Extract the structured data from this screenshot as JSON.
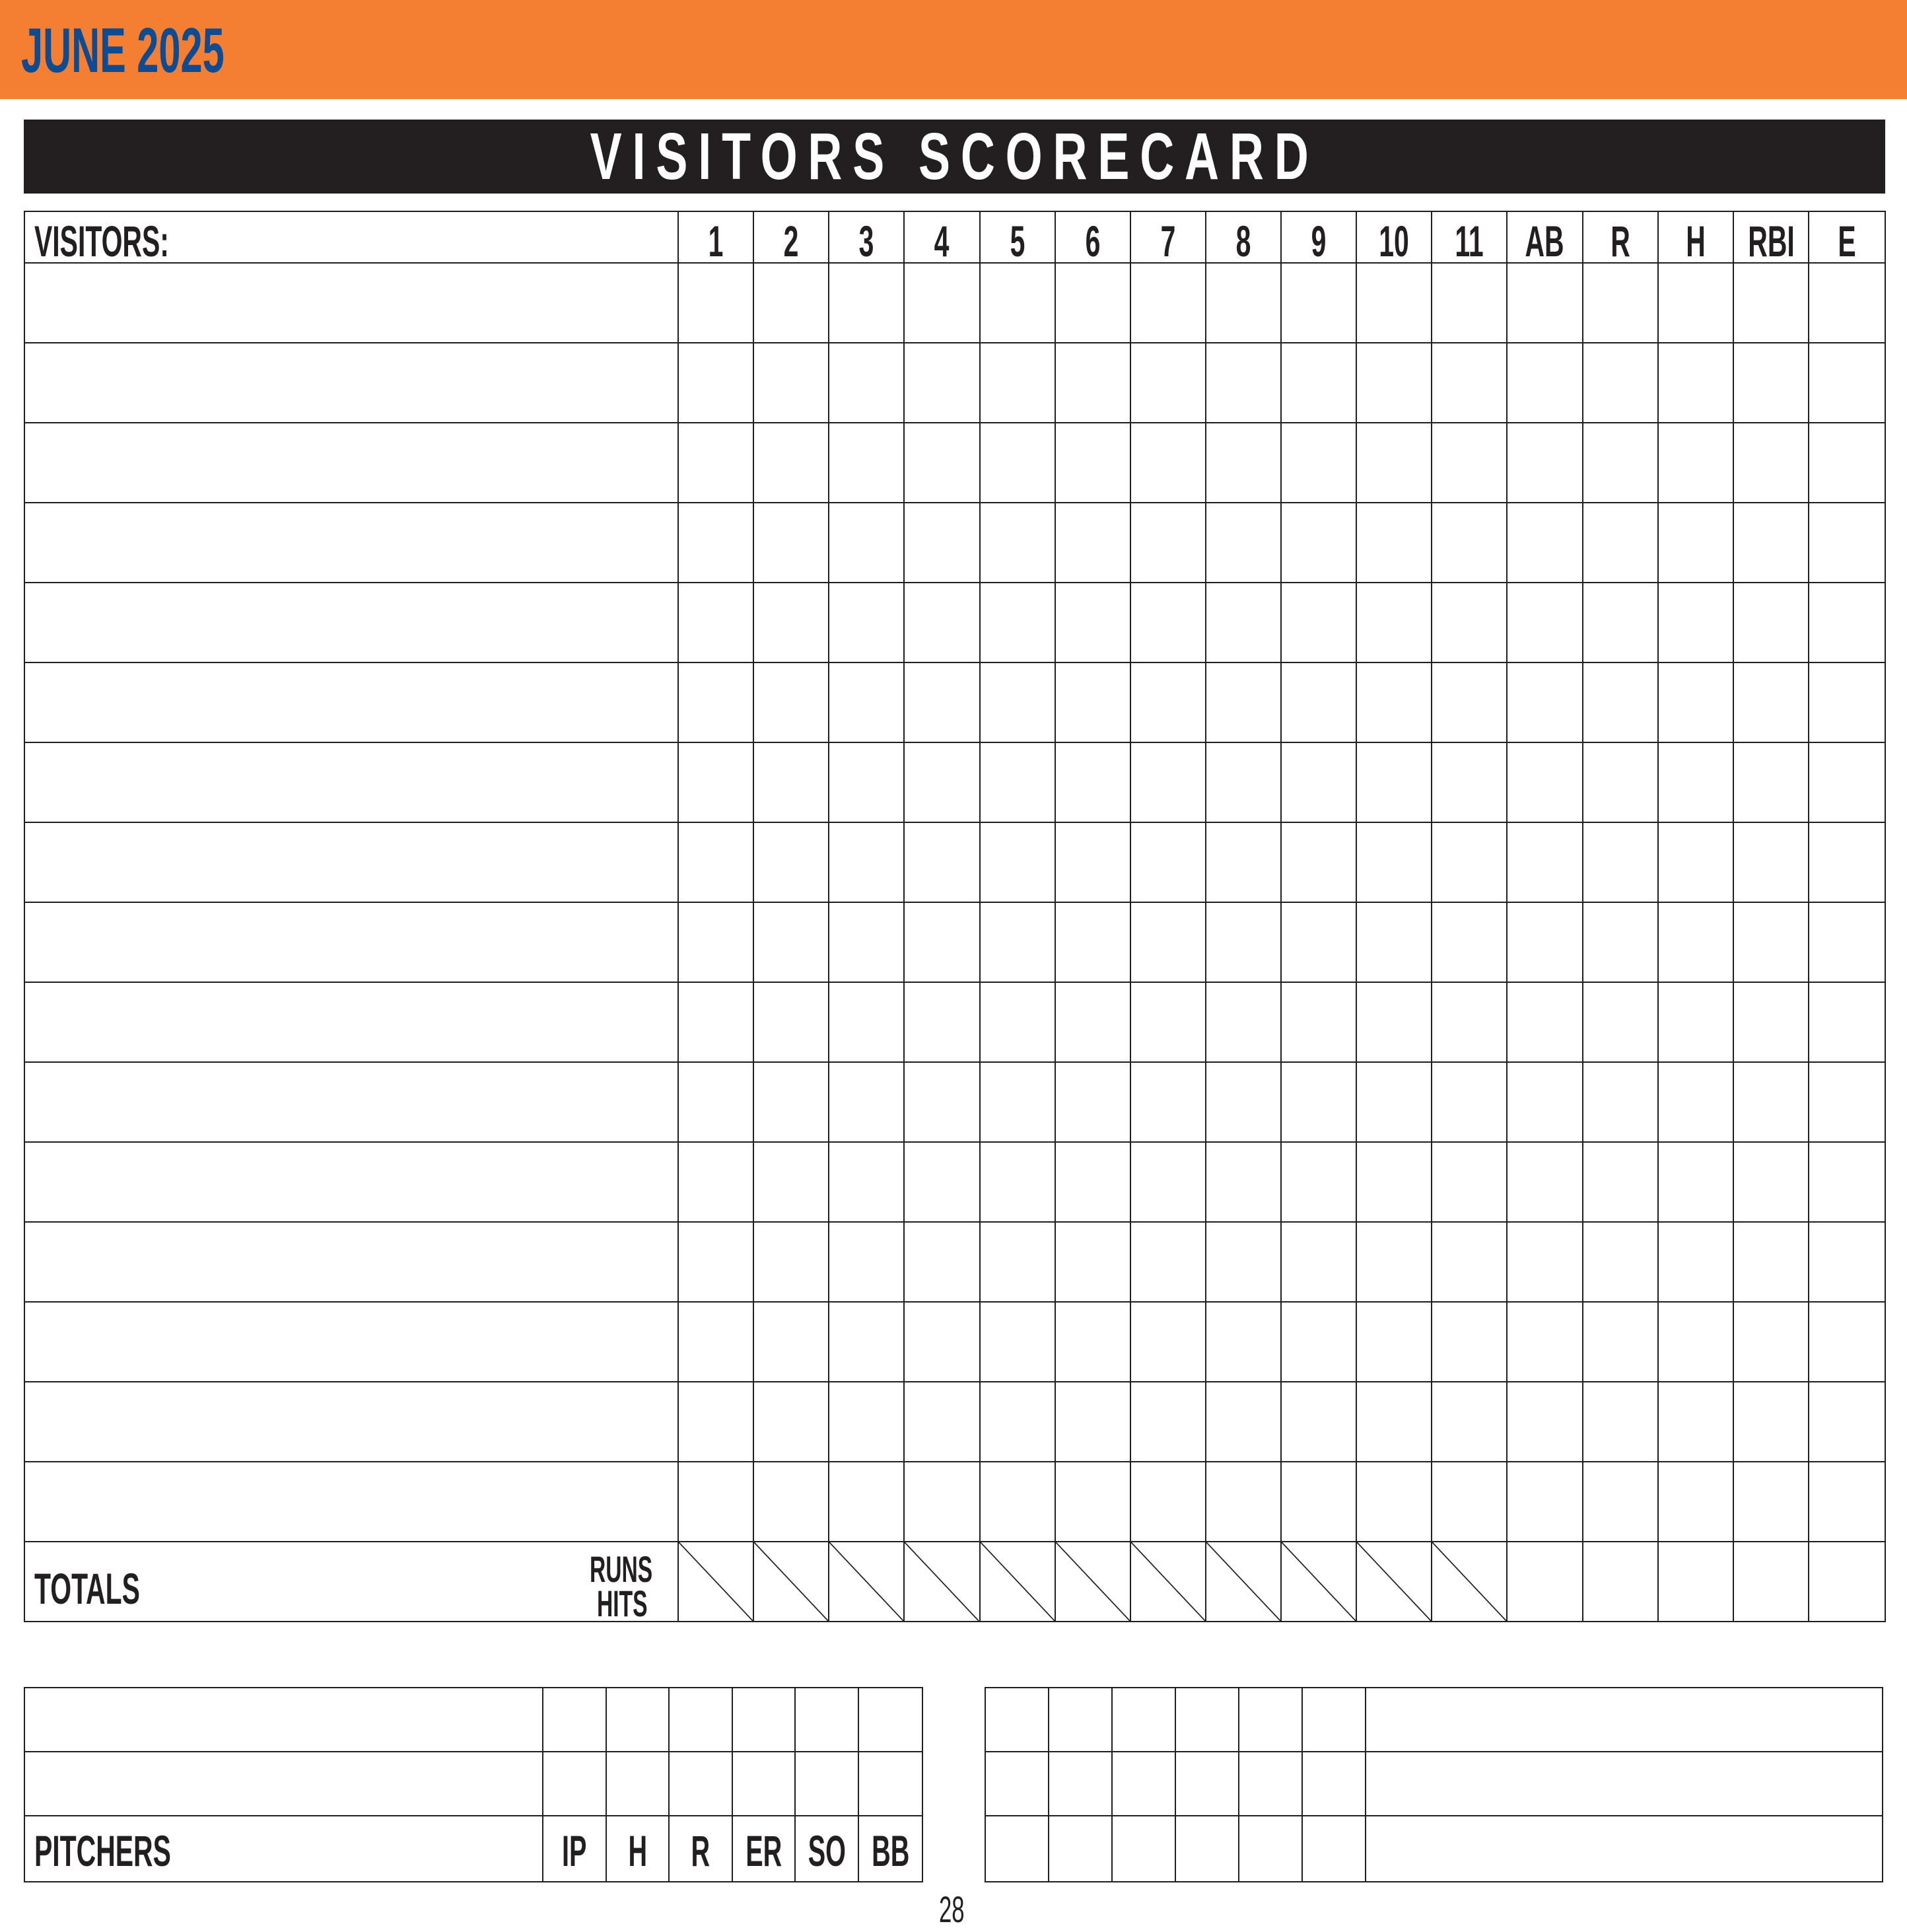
{
  "header": {
    "month": "JUNE 2025",
    "accent_color": "#f47f33",
    "month_color": "#0d4c93"
  },
  "banner": {
    "title": "VISITORS SCORECARD"
  },
  "scorecard": {
    "team_label": "VISITORS:",
    "columns": [
      "1",
      "2",
      "3",
      "4",
      "5",
      "6",
      "7",
      "8",
      "9",
      "10",
      "11",
      "AB",
      "R",
      "H",
      "RBI",
      "E"
    ],
    "batter_rows": 16,
    "totals_label": "TOTALS",
    "runs_label": "RUNS",
    "hits_label": "HITS"
  },
  "pitchers": {
    "label": "PITCHERS",
    "columns": [
      "IP",
      "H",
      "R",
      "ER",
      "SO",
      "BB"
    ]
  },
  "page_number": "28"
}
